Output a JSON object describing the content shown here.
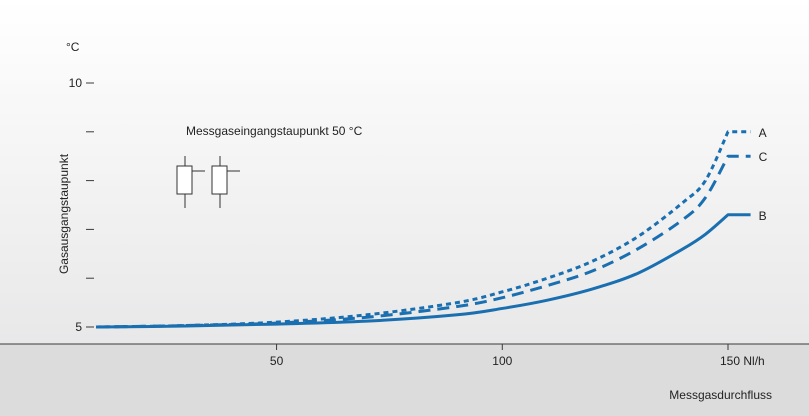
{
  "chart_data": {
    "type": "line",
    "ylabel": "Gasausgangstaupunkt",
    "yunit": "°C",
    "xlabel": "Messgasdurchfluss",
    "annotation": "Messgaseingangstaupunkt 50 °C",
    "xlim": [
      10,
      160
    ],
    "ylim": [
      5,
      10
    ],
    "x_ticks": [
      {
        "value": 50,
        "label": "50"
      },
      {
        "value": 100,
        "label": "100"
      },
      {
        "value": 150,
        "label": "150 Nl/h"
      }
    ],
    "y_ticks": [
      {
        "value": 5,
        "label": "5"
      },
      {
        "value": 6,
        "label": ""
      },
      {
        "value": 7,
        "label": ""
      },
      {
        "value": 8,
        "label": ""
      },
      {
        "value": 9,
        "label": ""
      },
      {
        "value": 10,
        "label": "10"
      }
    ],
    "grid": false,
    "series": [
      {
        "name": "A",
        "style": "dotted",
        "color": "#1a6fb0",
        "x": [
          10,
          30,
          50,
          70,
          90,
          100,
          110,
          120,
          130,
          140,
          145,
          150,
          155
        ],
        "y": [
          5.0,
          5.03,
          5.1,
          5.25,
          5.5,
          5.72,
          6.0,
          6.35,
          6.85,
          7.55,
          8.0,
          9.0,
          9.0
        ]
      },
      {
        "name": "C",
        "style": "dashed",
        "color": "#1a6fb0",
        "x": [
          10,
          30,
          50,
          70,
          90,
          100,
          110,
          120,
          130,
          140,
          145,
          150,
          155
        ],
        "y": [
          5.0,
          5.03,
          5.08,
          5.2,
          5.42,
          5.6,
          5.85,
          6.15,
          6.6,
          7.2,
          7.65,
          8.5,
          8.5
        ]
      },
      {
        "name": "B",
        "style": "solid",
        "color": "#1a6fb0",
        "x": [
          10,
          30,
          50,
          70,
          90,
          100,
          110,
          120,
          130,
          140,
          145,
          150,
          155
        ],
        "y": [
          5.0,
          5.02,
          5.06,
          5.12,
          5.25,
          5.38,
          5.55,
          5.78,
          6.1,
          6.6,
          6.9,
          7.3,
          7.3
        ]
      }
    ],
    "colors": {
      "plot_background_top": "#ffffff",
      "plot_background_bottom": "#e8e8e9",
      "axis_band": "#dcdcdd",
      "line": "#1a6fb0"
    },
    "icon": "gas-cooler-symbol-icon"
  }
}
